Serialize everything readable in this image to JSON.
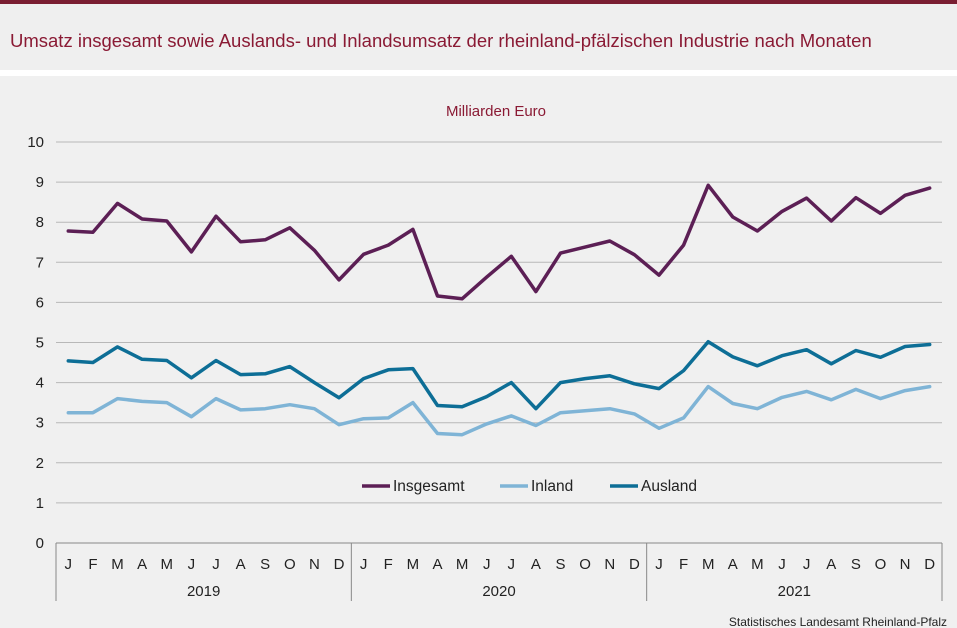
{
  "title": "Umsatz insgesamt sowie Auslands- und Inlandsumsatz der rheinland-pfälzischen Industrie nach Monaten",
  "source": "Statistisches Landesamt  Rheinland-Pfalz",
  "colors": {
    "Insgesamt": "#5c1f55",
    "Inland": "#7fb4d6",
    "Ausland": "#0d6e96",
    "brand": "#8a1a34"
  },
  "chart_data": {
    "type": "line",
    "unit_label": "Milliarden Euro",
    "ylim": [
      0,
      10
    ],
    "yticks": [
      "0",
      "1",
      "2",
      "3",
      "4",
      "5",
      "6",
      "7",
      "8",
      "9",
      "10"
    ],
    "month_labels": [
      "J",
      "F",
      "M",
      "A",
      "M",
      "J",
      "J",
      "A",
      "S",
      "O",
      "N",
      "D"
    ],
    "years": [
      "2019",
      "2020",
      "2021"
    ],
    "legend": [
      "Insgesamt",
      "Inland",
      "Ausland"
    ],
    "series": [
      {
        "name": "Insgesamt",
        "values": [
          7.78,
          7.75,
          8.47,
          8.08,
          8.03,
          7.26,
          8.15,
          7.51,
          7.56,
          7.86,
          7.3,
          6.56,
          7.2,
          7.43,
          7.82,
          6.16,
          6.09,
          6.63,
          7.15,
          6.27,
          7.23,
          7.38,
          7.53,
          7.19,
          6.68,
          7.43,
          8.92,
          8.13,
          7.78,
          8.27,
          8.6,
          8.03,
          8.61,
          8.22,
          8.67,
          8.85
        ]
      },
      {
        "name": "Inland",
        "values": [
          3.25,
          3.25,
          3.6,
          3.53,
          3.5,
          3.15,
          3.6,
          3.32,
          3.35,
          3.45,
          3.35,
          2.95,
          3.1,
          3.12,
          3.5,
          2.73,
          2.7,
          2.97,
          3.17,
          2.93,
          3.25,
          3.3,
          3.35,
          3.22,
          2.86,
          3.12,
          3.9,
          3.48,
          3.35,
          3.63,
          3.78,
          3.57,
          3.83,
          3.6,
          3.8,
          3.9
        ]
      },
      {
        "name": "Ausland",
        "values": [
          4.54,
          4.5,
          4.89,
          4.58,
          4.55,
          4.12,
          4.55,
          4.2,
          4.22,
          4.4,
          4.0,
          3.62,
          4.1,
          4.32,
          4.35,
          3.43,
          3.4,
          3.65,
          4.0,
          3.35,
          4.0,
          4.1,
          4.17,
          3.97,
          3.85,
          4.3,
          5.02,
          4.64,
          4.42,
          4.67,
          4.82,
          4.47,
          4.8,
          4.63,
          4.9,
          4.95
        ]
      }
    ]
  }
}
